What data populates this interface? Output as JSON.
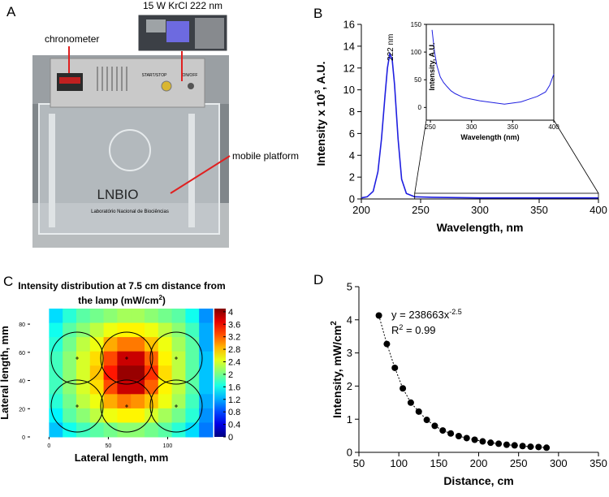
{
  "panels": {
    "a": "A",
    "b": "B",
    "c": "C",
    "d": "D"
  },
  "photo": {
    "lamp_label": "15 W KrCl 222 nm",
    "chronometer": "chronometer",
    "platform": "mobile platform",
    "start_button": "START/STOP",
    "switch": "ON/OFF",
    "logo": "LNBIO",
    "lab_name": "Laboratório Nacional de Biociências"
  },
  "chart_data": [
    {
      "type": "line",
      "color": "#1f1fe0",
      "x": [
        200,
        205,
        210,
        214,
        217,
        220,
        222,
        224,
        226,
        228,
        231,
        234,
        238,
        245,
        260,
        300,
        350,
        400
      ],
      "values": [
        0.1,
        0.2,
        0.7,
        2.5,
        5.5,
        9.5,
        12.0,
        13.3,
        12.8,
        10.5,
        5.5,
        1.8,
        0.5,
        0.2,
        0.15,
        0.1,
        0.1,
        0.1
      ],
      "xlim": [
        200,
        400
      ],
      "ylim": [
        0,
        16
      ],
      "xticks": [
        200,
        250,
        300,
        350,
        400
      ],
      "yticks": [
        0,
        2,
        4,
        6,
        8,
        10,
        12,
        14,
        16
      ],
      "xlabel": "Wavelength, nm",
      "ylabel": [
        "Intensity x 10",
        "3",
        ", A.U."
      ],
      "annotation": "222 nm",
      "inset": {
        "type": "line",
        "color": "#1f1fe0",
        "x": [
          252,
          255,
          258,
          262,
          266,
          270,
          275,
          280,
          290,
          300,
          310,
          320,
          330,
          340,
          350,
          360,
          370,
          380,
          390,
          395,
          400
        ],
        "values": [
          140,
          100,
          75,
          55,
          45,
          38,
          30,
          25,
          18,
          15,
          12,
          10,
          8,
          6,
          8,
          10,
          15,
          20,
          28,
          40,
          60
        ],
        "xlim": [
          245,
          400
        ],
        "ylim": [
          -23,
          150
        ],
        "xticks": [
          250,
          300,
          350,
          400
        ],
        "yticks": [
          0,
          50,
          100,
          150
        ],
        "xlabel": "Wavelength (nm)",
        "ylabel": "Intensity, A.U."
      }
    },
    {
      "type": "heatmap",
      "title": [
        "Intensity distribution at 7.5 cm distance from",
        "the lamp (mW/cm",
        "2",
        ")"
      ],
      "xlabel": "Lateral length, mm",
      "ylabel": "Lateral length, mm",
      "xlim": [
        -16,
        138
      ],
      "ylim": [
        0,
        91
      ],
      "xticks": [
        0,
        50,
        100
      ],
      "yticks": [
        0,
        20,
        40,
        60,
        80
      ],
      "clim": [
        0,
        4.1
      ],
      "colorbar_ticks": [
        0,
        0.4,
        0.8,
        1.2,
        1.6,
        2,
        2.4,
        2.8,
        3.2,
        3.6,
        4
      ],
      "z": [
        [
          1.4,
          1.7,
          1.9,
          2.0,
          2.1,
          2.2,
          2.2,
          2.1,
          2.0,
          1.9,
          1.6,
          1.1
        ],
        [
          1.6,
          1.9,
          2.1,
          2.3,
          2.5,
          2.6,
          2.6,
          2.5,
          2.3,
          2.1,
          1.8,
          1.2
        ],
        [
          1.7,
          2.0,
          2.3,
          2.5,
          2.9,
          3.1,
          3.1,
          2.8,
          2.5,
          2.2,
          1.9,
          1.2
        ],
        [
          1.8,
          2.1,
          2.4,
          2.7,
          3.3,
          3.8,
          3.8,
          3.2,
          2.6,
          2.3,
          1.9,
          1.3
        ],
        [
          1.8,
          2.1,
          2.4,
          2.8,
          3.5,
          4.0,
          4.0,
          3.4,
          2.7,
          2.3,
          1.9,
          1.3
        ],
        [
          1.8,
          2.1,
          2.4,
          2.7,
          3.3,
          3.8,
          3.8,
          3.2,
          2.6,
          2.3,
          1.9,
          1.3
        ],
        [
          1.7,
          2.0,
          2.3,
          2.5,
          2.9,
          3.1,
          3.0,
          2.8,
          2.5,
          2.2,
          1.8,
          1.2
        ],
        [
          1.5,
          1.9,
          2.1,
          2.3,
          2.5,
          2.6,
          2.6,
          2.4,
          2.2,
          2.0,
          1.7,
          1.1
        ],
        [
          1.3,
          1.6,
          1.8,
          1.9,
          2.0,
          2.1,
          2.1,
          2.0,
          1.9,
          1.7,
          1.4,
          1.0
        ]
      ]
    },
    {
      "type": "scatter",
      "color": "#000000",
      "trendline": true,
      "x": [
        75,
        85,
        95,
        105,
        115,
        125,
        135,
        145,
        155,
        165,
        175,
        185,
        195,
        205,
        215,
        225,
        235,
        245,
        255,
        265,
        275,
        285
      ],
      "values": [
        4.13,
        3.27,
        2.55,
        1.93,
        1.5,
        1.23,
        0.98,
        0.8,
        0.66,
        0.57,
        0.49,
        0.43,
        0.38,
        0.33,
        0.29,
        0.26,
        0.23,
        0.21,
        0.19,
        0.17,
        0.16,
        0.14
      ],
      "xlim": [
        50,
        350
      ],
      "ylim": [
        0,
        5
      ],
      "xticks": [
        50,
        100,
        150,
        200,
        250,
        300,
        350
      ],
      "yticks": [
        0,
        1,
        2,
        3,
        4,
        5
      ],
      "xlabel": "Distance, cm",
      "ylabel": [
        "Intensity, mW/cm",
        "2"
      ],
      "equation": [
        "y = 238663x",
        "-2.5"
      ],
      "r_squared": [
        "R",
        "2",
        " = 0.99"
      ]
    }
  ]
}
